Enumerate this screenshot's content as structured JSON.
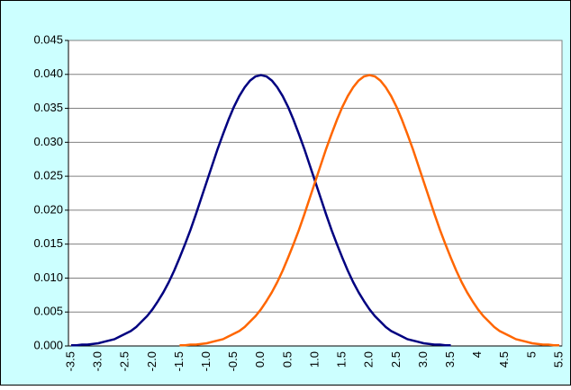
{
  "chart_data": {
    "type": "line",
    "categories": [
      "-3.5",
      null,
      null,
      null,
      null,
      "-3.0",
      null,
      null,
      null,
      null,
      "-2.5",
      null,
      null,
      null,
      null,
      "-2.0",
      null,
      null,
      null,
      null,
      "-1.5",
      null,
      null,
      null,
      null,
      "-1.0",
      null,
      null,
      null,
      null,
      "-0.5",
      null,
      null,
      null,
      null,
      "0.0",
      null,
      null,
      null,
      null,
      "0.5",
      null,
      null,
      null,
      null,
      "1.0",
      null,
      null,
      null,
      null,
      "1.5",
      null,
      null,
      null,
      null,
      "2.0",
      null,
      null,
      null,
      null,
      "2.5",
      null,
      null,
      null,
      null,
      "3.0",
      null,
      null,
      null,
      null,
      "3.5",
      null,
      null,
      null,
      null,
      "4",
      null,
      null,
      null,
      null,
      "4.5",
      null,
      null,
      null,
      null,
      "5",
      null,
      null,
      null,
      null,
      "5.5"
    ],
    "series": [
      {
        "color": "#000080",
        "values": [
          0.0001,
          0.0001,
          0.0002,
          0.0002,
          0.0003,
          0.0004,
          0.0006,
          0.0008,
          0.001,
          0.0014,
          0.0018,
          0.0022,
          0.0028,
          0.0036,
          0.0044,
          0.0054,
          0.0066,
          0.0079,
          0.0094,
          0.0111,
          0.013,
          0.015,
          0.0171,
          0.0194,
          0.0218,
          0.0242,
          0.0266,
          0.029,
          0.0312,
          0.0333,
          0.0352,
          0.0368,
          0.0381,
          0.0391,
          0.0397,
          0.0399,
          0.0397,
          0.0391,
          0.0381,
          0.0368,
          0.0352,
          0.0333,
          0.0312,
          0.029,
          0.0266,
          0.0242,
          0.0218,
          0.0194,
          0.0171,
          0.015,
          0.013,
          0.0111,
          0.0094,
          0.0079,
          0.0066,
          0.0054,
          0.0044,
          0.0036,
          0.0028,
          0.0022,
          0.0018,
          0.0014,
          0.001,
          0.0008,
          0.0006,
          0.0004,
          0.0003,
          0.0002,
          0.0002,
          0.0001,
          0.0001,
          null,
          null,
          null,
          null,
          null,
          null,
          null,
          null,
          null,
          null,
          null,
          null,
          null,
          null,
          null,
          null,
          null,
          null,
          null,
          null
        ]
      },
      {
        "color": "#ff6600",
        "values": [
          null,
          null,
          null,
          null,
          null,
          null,
          null,
          null,
          null,
          null,
          null,
          null,
          null,
          null,
          null,
          null,
          null,
          null,
          null,
          null,
          0.0001,
          0.0001,
          0.0002,
          0.0002,
          0.0003,
          0.0004,
          0.0006,
          0.0008,
          0.001,
          0.0014,
          0.0018,
          0.0022,
          0.0028,
          0.0036,
          0.0044,
          0.0054,
          0.0066,
          0.0079,
          0.0094,
          0.0111,
          0.013,
          0.015,
          0.0171,
          0.0194,
          0.0218,
          0.0242,
          0.0266,
          0.029,
          0.0312,
          0.0333,
          0.0352,
          0.0368,
          0.0381,
          0.0391,
          0.0397,
          0.0399,
          0.0397,
          0.0391,
          0.0381,
          0.0368,
          0.0352,
          0.0333,
          0.0312,
          0.029,
          0.0266,
          0.0242,
          0.0218,
          0.0194,
          0.0171,
          0.015,
          0.013,
          0.0111,
          0.0094,
          0.0079,
          0.0066,
          0.0054,
          0.0044,
          0.0036,
          0.0028,
          0.0022,
          0.0018,
          0.0014,
          0.001,
          0.0008,
          0.0006,
          0.0004,
          0.0003,
          0.0002,
          0.0002,
          0.0001,
          0.0001
        ]
      }
    ],
    "ylim": [
      0,
      0.045
    ],
    "yticks": [
      {
        "value": 0,
        "label": "0.000"
      },
      {
        "value": 0.005,
        "label": "0.005"
      },
      {
        "value": 0.01,
        "label": "0.010"
      },
      {
        "value": 0.015,
        "label": "0.015"
      },
      {
        "value": 0.02,
        "label": "0.020"
      },
      {
        "value": 0.025,
        "label": "0.025"
      },
      {
        "value": 0.03,
        "label": "0.030"
      },
      {
        "value": 0.035,
        "label": "0.035"
      },
      {
        "value": 0.04,
        "label": "0.040"
      },
      {
        "value": 0.045,
        "label": "0.045"
      }
    ],
    "grid": true
  }
}
